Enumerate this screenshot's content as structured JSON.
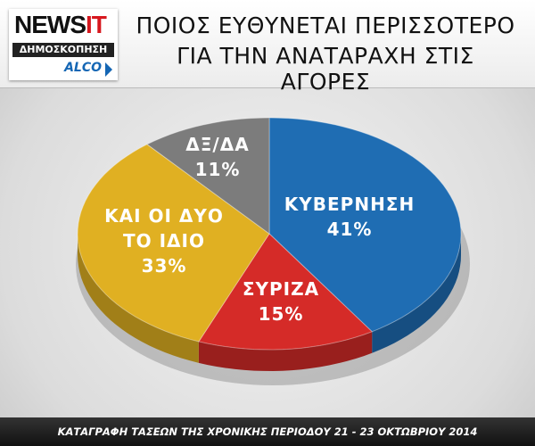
{
  "header": {
    "logo": {
      "brand": "NEWS",
      "brand_accent": "IT",
      "subtitle": "ΔΗΜΟΣΚΟΠΗΣΗ",
      "pollster": "ALCO"
    }
  },
  "chart_data": {
    "type": "pie",
    "title": [
      "ΠΟΙΟΣ ΕΥΘΥΝΕΤΑΙ ΠΕΡΙΣΣΟΤΕΡΟ",
      "ΓΙΑ ΤΗΝ ΑΝΑΤΑΡΑΧΗ ΣΤΙΣ ΑΓΟΡΕΣ"
    ],
    "categories": [
      "ΚΥΒΕΡΝΗΣΗ",
      "ΣΥΡΙΖΑ",
      "ΚΑΙ ΟΙ ΔΥΟ ΤΟ ΙΔΙΟ",
      "ΔΞ/ΔΑ"
    ],
    "values": [
      41,
      15,
      33,
      11
    ],
    "value_labels": [
      "41%",
      "15%",
      "33%",
      "11%"
    ],
    "colors": [
      "#1f6db3",
      "#d52b28",
      "#e0b022",
      "#7c7c7c"
    ],
    "footnote": "ΚΑΤΑΓΡΑΦΗ ΤΑΣΕΩΝ ΤΗΣ ΧΡΟΝΙΚΗΣ ΠΕΡΙΟΔΟΥ 21 - 23 ΟΚΤΩΒΡΙΟΥ 2014"
  }
}
